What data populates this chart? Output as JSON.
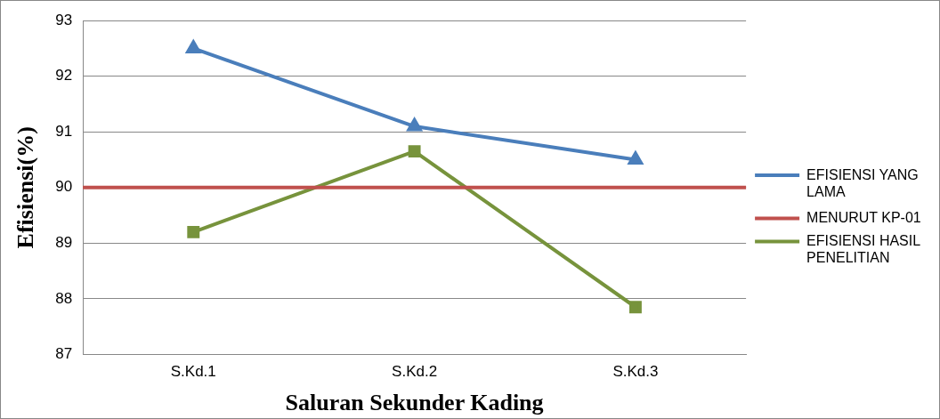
{
  "chart_data": {
    "type": "line",
    "xlabel": "Saluran Sekunder Kading",
    "ylabel": "Efisiensi(%)",
    "categories": [
      "S.Kd.1",
      "S.Kd.2",
      "S.Kd.3"
    ],
    "series": [
      {
        "name": "EFISIENSI YANG LAMA",
        "color": "#4a7ebb",
        "marker": "triangle",
        "values": [
          92.5,
          91.1,
          90.5
        ]
      },
      {
        "name": "EFISIENSI HASIL PENELITIAN",
        "color": "#77933c",
        "marker": "square",
        "values": [
          89.2,
          90.65,
          87.85
        ]
      }
    ],
    "ref_lines": [
      {
        "axis": "y",
        "value": 90,
        "label": "MENURUT KP-01",
        "color": "#c0504d"
      }
    ],
    "ylim": [
      87,
      93
    ],
    "yticks": [
      87,
      88,
      89,
      90,
      91,
      92,
      93
    ],
    "grid": "y",
    "legend": "right"
  }
}
